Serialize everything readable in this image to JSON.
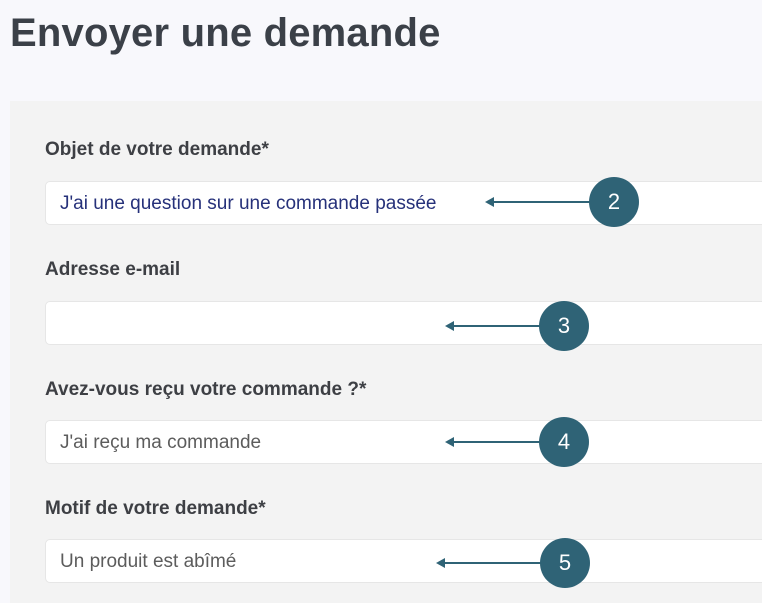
{
  "page": {
    "title": "Envoyer une demande"
  },
  "form": {
    "fields": [
      {
        "label": "Objet de votre demande*",
        "value": "J'ai une question sur une commande passée"
      },
      {
        "label": "Adresse e-mail",
        "value": ""
      },
      {
        "label": "Avez-vous reçu votre commande ?*",
        "value": "J'ai reçu ma commande"
      },
      {
        "label": "Motif de votre demande*",
        "value": "Un produit est abîmé"
      }
    ]
  },
  "annotations": [
    {
      "number": "2"
    },
    {
      "number": "3"
    },
    {
      "number": "4"
    },
    {
      "number": "5"
    }
  ],
  "colors": {
    "annotation": "#2f6376",
    "selected_text": "#26317a",
    "panel_bg": "#f3f3f3"
  }
}
